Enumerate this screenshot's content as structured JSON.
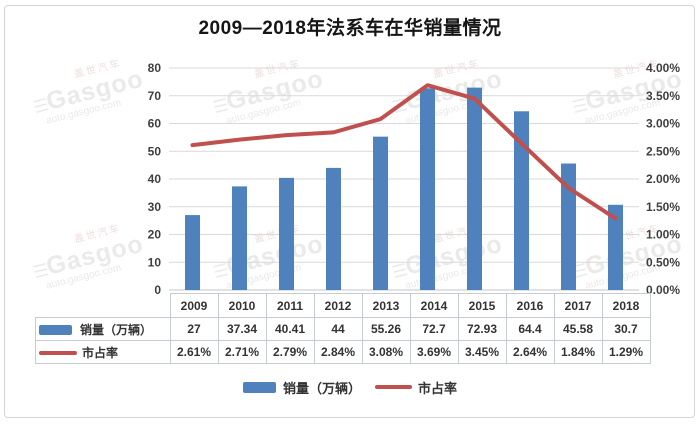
{
  "title": "2009—2018年法系车在华销量情况",
  "watermark": {
    "brand_cn": "盖世汽车",
    "brand": "Gasgoo",
    "site": "auto.gasgoo.com"
  },
  "chart_data": {
    "type": "combo-bar-line",
    "title": "2009—2018年法系车在华销量情况",
    "categories": [
      "2009",
      "2010",
      "2011",
      "2012",
      "2013",
      "2014",
      "2015",
      "2016",
      "2017",
      "2018"
    ],
    "series": [
      {
        "name": "销量（万辆）",
        "chart": "bar",
        "axis": "left",
        "color": "#4f81bd",
        "values": [
          27,
          37.34,
          40.41,
          44,
          55.26,
          72.7,
          72.93,
          64.4,
          45.58,
          30.7
        ],
        "labels": [
          "27",
          "37.34",
          "40.41",
          "44",
          "55.26",
          "72.7",
          "72.93",
          "64.4",
          "45.58",
          "30.7"
        ]
      },
      {
        "name": "市占率",
        "chart": "line",
        "axis": "right",
        "color": "#c0504d",
        "values": [
          2.61,
          2.71,
          2.79,
          2.84,
          3.08,
          3.69,
          3.45,
          2.64,
          1.84,
          1.29
        ],
        "labels": [
          "2.61%",
          "2.71%",
          "2.79%",
          "2.84%",
          "3.08%",
          "3.69%",
          "3.45%",
          "2.64%",
          "1.84%",
          "1.29%"
        ]
      }
    ],
    "left_axis": {
      "min": 0,
      "max": 80,
      "tick_labels": [
        "80",
        "70",
        "60",
        "50",
        "40",
        "30",
        "20",
        "10",
        "0"
      ]
    },
    "right_axis": {
      "min": 0,
      "max": 4,
      "tick_labels": [
        "4.00%",
        "3.50%",
        "3.00%",
        "2.50%",
        "2.00%",
        "1.50%",
        "1.00%",
        "0.50%",
        "0.00%"
      ]
    },
    "grid": true,
    "grid_color": "#d9d9d9",
    "legend_position": "bottom",
    "data_table": true
  }
}
